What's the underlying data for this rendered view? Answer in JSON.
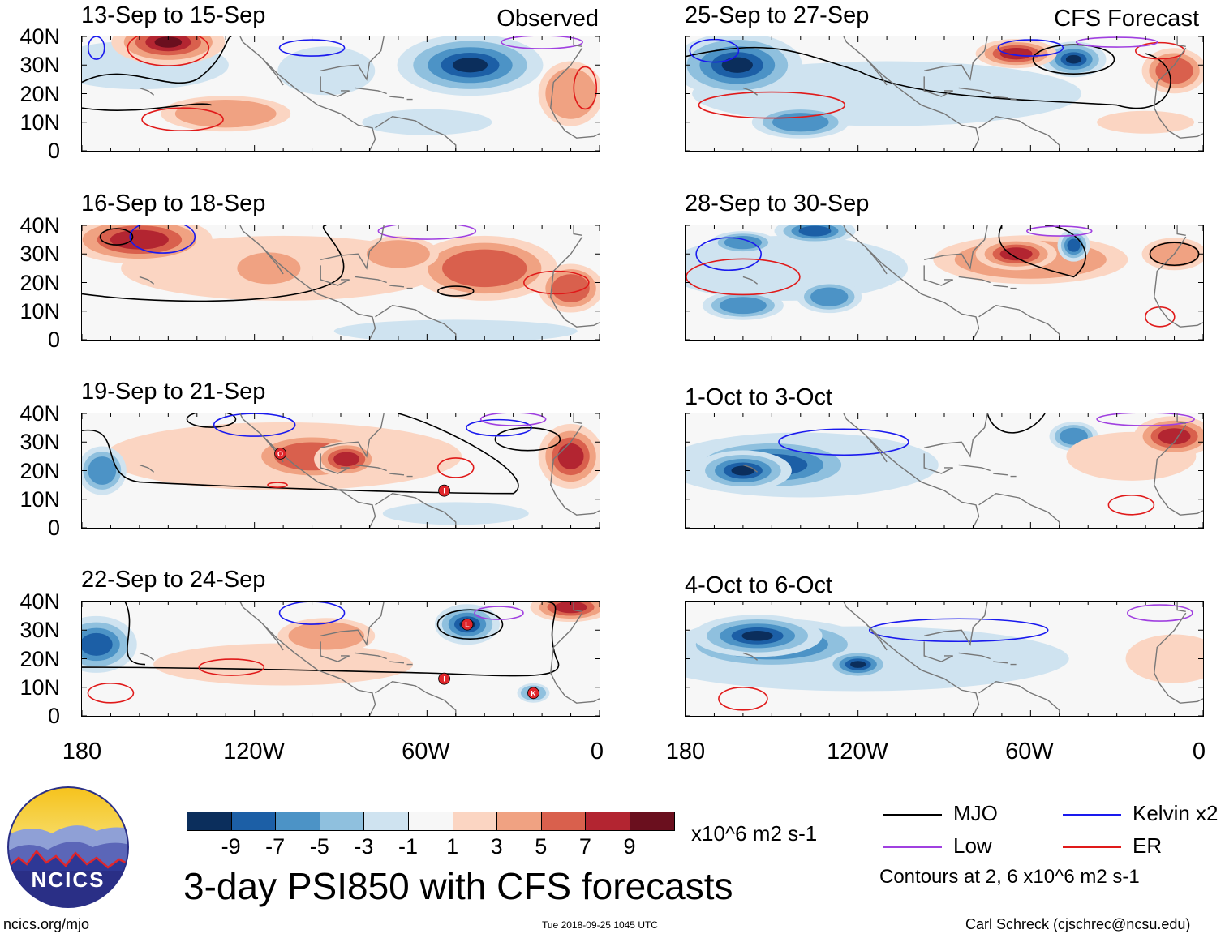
{
  "colors": {
    "neg9": "#0b2e5c",
    "neg7": "#1c5fa6",
    "neg5": "#4c93c6",
    "neg3": "#8fc0de",
    "neg1": "#cfe3f0",
    "neutral": "#f7f7f7",
    "pos1": "#fbd5c2",
    "pos3": "#f0a282",
    "pos5": "#d9604d",
    "pos7": "#b32531",
    "pos9": "#6a0f1e",
    "mjo": "#000000",
    "kelvin": "#1a1aee",
    "low": "#a040e0",
    "er": "#e01a1a",
    "land": "#777777",
    "storm": "#e0262b"
  },
  "header": {
    "observed_label": "Observed",
    "forecast_label": "CFS Forecast"
  },
  "axes": {
    "lat_labels": [
      "40N",
      "30N",
      "20N",
      "10N",
      "0"
    ],
    "lon_labels": [
      "180",
      "120W",
      "60W",
      "0"
    ]
  },
  "panels": [
    {
      "id": "p1",
      "title": "13-Sep to 15-Sep",
      "section": "observed"
    },
    {
      "id": "p2",
      "title": "16-Sep to 18-Sep",
      "section": "observed"
    },
    {
      "id": "p3",
      "title": "19-Sep to 21-Sep",
      "section": "observed",
      "storms": [
        {
          "letter": "O",
          "lon": -111,
          "lat": 26
        },
        {
          "letter": "I",
          "lon": -54,
          "lat": 13
        }
      ]
    },
    {
      "id": "p4",
      "title": "22-Sep to 24-Sep",
      "section": "observed",
      "storms": [
        {
          "letter": "L",
          "lon": -46,
          "lat": 32
        },
        {
          "letter": "I",
          "lon": -54,
          "lat": 13
        },
        {
          "letter": "K",
          "lon": -23,
          "lat": 8
        }
      ]
    },
    {
      "id": "p5",
      "title": "25-Sep to 27-Sep",
      "section": "forecast"
    },
    {
      "id": "p6",
      "title": "28-Sep to 30-Sep",
      "section": "forecast"
    },
    {
      "id": "p7",
      "title": "1-Oct to 3-Oct",
      "section": "forecast"
    },
    {
      "id": "p8",
      "title": "4-Oct to 6-Oct",
      "section": "forecast"
    }
  ],
  "colorbar": {
    "levels": [
      "-9",
      "-7",
      "-5",
      "-3",
      "-1",
      "1",
      "3",
      "5",
      "7",
      "9"
    ],
    "units": "x10^6 m2 s-1"
  },
  "legend": {
    "items": [
      {
        "label": "MJO",
        "color": "#000000"
      },
      {
        "label": "Kelvin x2",
        "color": "#1a1aee"
      },
      {
        "label": "Low",
        "color": "#a040e0"
      },
      {
        "label": "ER",
        "color": "#e01a1a"
      }
    ],
    "note": "Contours at 2, 6 x10^6 m2 s-1"
  },
  "main_title": "3-day PSI850 with CFS forecasts",
  "logo": {
    "text": "NCICS"
  },
  "footer": {
    "url": "ncics.org/mjo",
    "timestamp": "Tue 2018-09-25 1045 UTC",
    "credit": "Carl Schreck (cjschrec@ncsu.edu)"
  }
}
